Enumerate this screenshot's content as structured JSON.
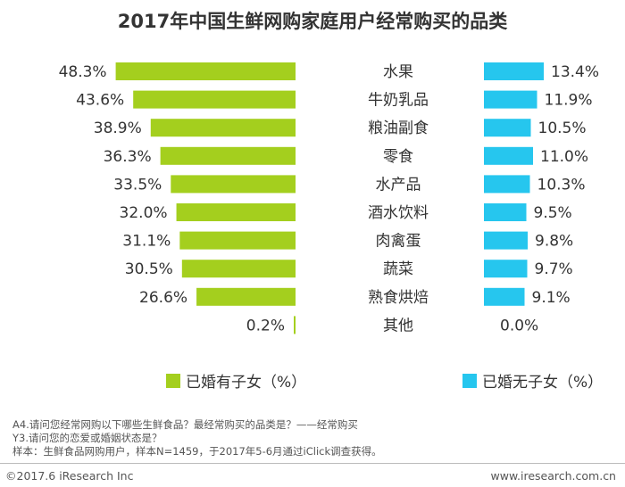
{
  "chart_data": {
    "type": "bar",
    "title": "2017年中国生鲜网购家庭用户经常购买的品类",
    "categories": [
      "水果",
      "牛奶乳品",
      "粮油副食",
      "零食",
      "水产品",
      "酒水饮料",
      "肉禽蛋",
      "蔬菜",
      "熟食烘焙",
      "其他"
    ],
    "series": [
      {
        "name": "已婚有子女（%）",
        "color": "#a4cf1e",
        "values": [
          48.3,
          43.6,
          38.9,
          36.3,
          33.5,
          32.0,
          31.1,
          30.5,
          26.6,
          0.2
        ],
        "labels": [
          "48.3%",
          "43.6%",
          "38.9%",
          "36.3%",
          "33.5%",
          "32.0%",
          "31.1%",
          "30.5%",
          "26.6%",
          "0.2%"
        ]
      },
      {
        "name": "已婚无子女（%）",
        "color": "#26c6ee",
        "values": [
          13.4,
          11.9,
          10.5,
          11.0,
          10.3,
          9.5,
          9.8,
          9.7,
          9.1,
          0.0
        ],
        "labels": [
          "13.4%",
          "11.9%",
          "10.5%",
          "11.0%",
          "10.3%",
          "9.5%",
          "9.8%",
          "9.7%",
          "9.1%",
          "0.0%"
        ]
      }
    ],
    "orientation": "horizontal, back-to-back",
    "legend": "bottom"
  },
  "notes": [
    "A4.请问您经常网购以下哪些生鲜食品？最经常购买的品类是？——经常购买",
    "Y3.请问您的恋爱或婚姻状态是？",
    "样本：生鲜食品网购用户，样本N=1459，于2017年5-6月通过iClick调查获得。"
  ],
  "footer": {
    "left": "©2017.6 iResearch Inc",
    "right": "www.iresearch.com.cn"
  }
}
